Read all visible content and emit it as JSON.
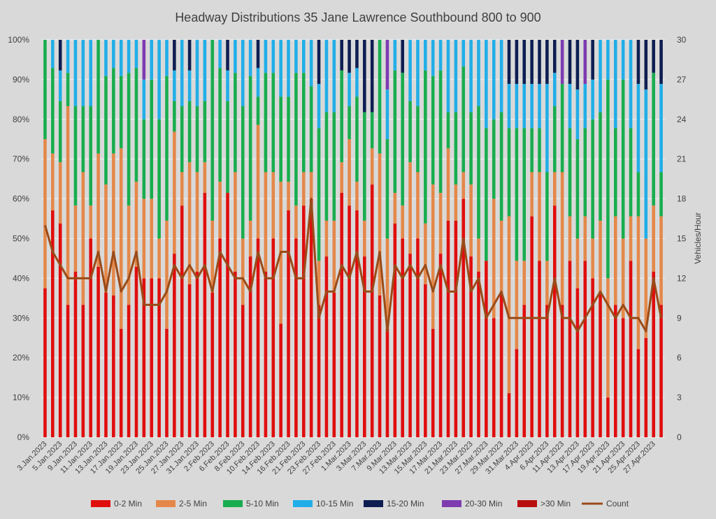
{
  "chart_data": {
    "type": "bar",
    "stacked": true,
    "title": "Headway Distributions 35 Jane  Lawrence Southbound 800 to 900",
    "y_axis": {
      "ticks": [
        "0%",
        "10%",
        "20%",
        "30%",
        "40%",
        "50%",
        "60%",
        "70%",
        "80%",
        "90%",
        "100%"
      ],
      "ylim": [
        0,
        100
      ]
    },
    "y2_axis": {
      "label": "Vehicles/Hour",
      "ticks": [
        "0",
        "3",
        "6",
        "9",
        "12",
        "15",
        "18",
        "21",
        "24",
        "27",
        "30"
      ],
      "ylim": [
        0,
        30
      ]
    },
    "grid": true,
    "legend_position": "bottom",
    "x_tick_labels": [
      "3.Jan.2023",
      "5.Jan.2023",
      "9.Jan.2023",
      "11.Jan.2023",
      "13.Jan.2023",
      "17.Jan.2023",
      "19.Jan.2023",
      "23.Jan.2023",
      "25.Jan.2023",
      "27.Jan.2023",
      "31.Jan.2023",
      "2.Feb.2023",
      "6.Feb.2023",
      "8.Feb.2023",
      "10.Feb.2023",
      "14.Feb.2023",
      "16.Feb.2023",
      "21.Feb.2023",
      "23.Feb.2023",
      "27.Feb.2023",
      "1.Mar.2023",
      "3.Mar.2023",
      "7.Mar.2023",
      "9.Mar.2023",
      "13.Mar.2023",
      "15.Mar.2023",
      "17.Mar.2023",
      "21.Mar.2023",
      "23.Mar.2023",
      "27.Mar.2023",
      "29.Mar.2023",
      "31.Mar.2023",
      "4.Apr.2023",
      "6.Apr.2023",
      "11.Apr.2023",
      "13.Apr.2023",
      "17.Apr.2023",
      "19.Apr.2023",
      "21.Apr.2023",
      "25.Apr.2023",
      "27.Apr.2023"
    ],
    "series_meta": [
      {
        "name": "0-2 Min",
        "color": "#e00d0d"
      },
      {
        "name": "2-5 Min",
        "color": "#e4884a"
      },
      {
        "name": "5-10 Min",
        "color": "#18ad4e"
      },
      {
        "name": "10-15 Min",
        "color": "#21aee8"
      },
      {
        "name": "15-20 Min",
        "color": "#0e1e52"
      },
      {
        "name": "20-30 Min",
        "color": "#7e3bb0"
      },
      {
        "name": ">30 Min",
        "color": "#b80e0e"
      }
    ],
    "line_series": {
      "name": "Count",
      "color": "#9a4b18",
      "axis": "secondary"
    },
    "values": [
      [
        37.5,
        75.0,
        100.0,
        100.0,
        100.0,
        100.0,
        100.0,
        16
      ],
      [
        57.1,
        71.4,
        92.9,
        100.0,
        100.0,
        100.0,
        100.0,
        14
      ],
      [
        53.8,
        69.2,
        84.6,
        92.3,
        100.0,
        100.0,
        100.0,
        13
      ],
      [
        33.3,
        83.3,
        91.7,
        100.0,
        100.0,
        100.0,
        100.0,
        12
      ],
      [
        41.7,
        58.3,
        83.3,
        100.0,
        100.0,
        100.0,
        100.0,
        12
      ],
      [
        33.3,
        66.7,
        83.3,
        100.0,
        100.0,
        100.0,
        100.0,
        12
      ],
      [
        50.0,
        58.3,
        83.3,
        100.0,
        100.0,
        100.0,
        100.0,
        12
      ],
      [
        42.9,
        71.4,
        100.0,
        100.0,
        100.0,
        100.0,
        100.0,
        14
      ],
      [
        36.4,
        63.6,
        90.9,
        100.0,
        100.0,
        100.0,
        100.0,
        11
      ],
      [
        35.7,
        71.4,
        92.9,
        100.0,
        100.0,
        100.0,
        100.0,
        14
      ],
      [
        27.3,
        72.7,
        90.9,
        100.0,
        100.0,
        100.0,
        100.0,
        11
      ],
      [
        33.3,
        58.3,
        91.7,
        100.0,
        100.0,
        100.0,
        100.0,
        12
      ],
      [
        42.9,
        64.3,
        92.9,
        100.0,
        100.0,
        100.0,
        100.0,
        14
      ],
      [
        40.0,
        60.0,
        80.0,
        90.0,
        90.0,
        100.0,
        100.0,
        10
      ],
      [
        40.0,
        60.0,
        90.0,
        100.0,
        100.0,
        100.0,
        100.0,
        10
      ],
      [
        40.0,
        50.0,
        80.0,
        100.0,
        100.0,
        100.0,
        100.0,
        10
      ],
      [
        27.3,
        54.5,
        90.9,
        100.0,
        100.0,
        100.0,
        100.0,
        11
      ],
      [
        46.2,
        76.9,
        84.6,
        92.3,
        100.0,
        100.0,
        100.0,
        13
      ],
      [
        58.3,
        66.7,
        83.3,
        100.0,
        100.0,
        100.0,
        100.0,
        12
      ],
      [
        38.5,
        69.2,
        84.6,
        92.3,
        100.0,
        100.0,
        100.0,
        13
      ],
      [
        41.7,
        66.7,
        83.3,
        100.0,
        100.0,
        100.0,
        100.0,
        12
      ],
      [
        61.5,
        69.2,
        84.6,
        100.0,
        100.0,
        100.0,
        100.0,
        13
      ],
      [
        36.4,
        54.5,
        100.0,
        100.0,
        100.0,
        100.0,
        100.0,
        11
      ],
      [
        50.0,
        64.3,
        92.9,
        100.0,
        100.0,
        100.0,
        100.0,
        14
      ],
      [
        61.5,
        61.5,
        84.6,
        92.3,
        100.0,
        100.0,
        100.0,
        13
      ],
      [
        41.7,
        66.7,
        91.7,
        100.0,
        100.0,
        100.0,
        100.0,
        12
      ],
      [
        33.3,
        50.0,
        83.3,
        100.0,
        100.0,
        100.0,
        100.0,
        12
      ],
      [
        45.5,
        54.5,
        90.9,
        100.0,
        100.0,
        100.0,
        100.0,
        11
      ],
      [
        50.0,
        78.6,
        85.7,
        92.9,
        100.0,
        100.0,
        100.0,
        14
      ],
      [
        41.7,
        66.7,
        91.7,
        100.0,
        100.0,
        100.0,
        100.0,
        12
      ],
      [
        50.0,
        66.7,
        91.7,
        100.0,
        100.0,
        100.0,
        100.0,
        12
      ],
      [
        28.6,
        64.3,
        85.7,
        100.0,
        100.0,
        100.0,
        100.0,
        14
      ],
      [
        57.1,
        64.3,
        85.7,
        100.0,
        100.0,
        100.0,
        100.0,
        14
      ],
      [
        50.0,
        58.3,
        91.7,
        100.0,
        100.0,
        100.0,
        100.0,
        12
      ],
      [
        58.3,
        66.7,
        91.7,
        100.0,
        100.0,
        100.0,
        100.0,
        12
      ],
      [
        60.0,
        66.7,
        88.3,
        100.0,
        100.0,
        100.0,
        100.0,
        18
      ],
      [
        33.3,
        44.4,
        77.8,
        88.9,
        100.0,
        100.0,
        100.0,
        9
      ],
      [
        45.5,
        54.5,
        81.8,
        100.0,
        100.0,
        100.0,
        100.0,
        11
      ],
      [
        36.4,
        54.5,
        81.8,
        100.0,
        100.0,
        100.0,
        100.0,
        11
      ],
      [
        61.5,
        69.2,
        92.3,
        92.3,
        100.0,
        100.0,
        100.0,
        13
      ],
      [
        58.3,
        75.0,
        83.3,
        91.7,
        100.0,
        100.0,
        100.0,
        12
      ],
      [
        57.1,
        64.3,
        85.7,
        92.9,
        100.0,
        100.0,
        100.0,
        14
      ],
      [
        45.5,
        54.5,
        81.8,
        81.8,
        100.0,
        100.0,
        100.0,
        11
      ],
      [
        63.6,
        72.7,
        81.8,
        81.8,
        100.0,
        100.0,
        100.0,
        11
      ],
      [
        35.7,
        71.4,
        100.0,
        100.0,
        100.0,
        100.0,
        100.0,
        14
      ],
      [
        27.3,
        50.0,
        75.0,
        87.5,
        87.5,
        100.0,
        100.0,
        8
      ],
      [
        53.8,
        61.5,
        92.3,
        100.0,
        100.0,
        100.0,
        100.0,
        13
      ],
      [
        50.0,
        58.3,
        91.7,
        91.7,
        100.0,
        100.0,
        100.0,
        12
      ],
      [
        46.2,
        69.2,
        84.6,
        100.0,
        100.0,
        100.0,
        100.0,
        13
      ],
      [
        50.0,
        66.7,
        83.3,
        100.0,
        100.0,
        100.0,
        100.0,
        12
      ],
      [
        38.5,
        53.8,
        92.3,
        100.0,
        100.0,
        100.0,
        100.0,
        13
      ],
      [
        27.3,
        63.6,
        90.9,
        100.0,
        100.0,
        100.0,
        100.0,
        11
      ],
      [
        46.2,
        61.5,
        92.3,
        100.0,
        100.0,
        100.0,
        100.0,
        13
      ],
      [
        54.5,
        72.7,
        81.8,
        100.0,
        100.0,
        100.0,
        100.0,
        11
      ],
      [
        54.5,
        63.6,
        81.8,
        100.0,
        100.0,
        100.0,
        100.0,
        11
      ],
      [
        60.0,
        66.7,
        93.3,
        100.0,
        100.0,
        100.0,
        100.0,
        15
      ],
      [
        45.5,
        63.6,
        81.8,
        100.0,
        100.0,
        100.0,
        100.0,
        11
      ],
      [
        41.7,
        50.0,
        83.3,
        100.0,
        100.0,
        100.0,
        100.0,
        12
      ],
      [
        44.4,
        44.4,
        77.8,
        100.0,
        100.0,
        100.0,
        100.0,
        9
      ],
      [
        30.0,
        60.0,
        80.0,
        100.0,
        100.0,
        100.0,
        100.0,
        10
      ],
      [
        36.4,
        54.5,
        81.8,
        100.0,
        100.0,
        100.0,
        100.0,
        11
      ],
      [
        11.1,
        55.6,
        77.8,
        88.9,
        100.0,
        100.0,
        100.0,
        9
      ],
      [
        22.2,
        44.4,
        77.8,
        88.9,
        100.0,
        100.0,
        100.0,
        9
      ],
      [
        33.3,
        44.4,
        77.8,
        88.9,
        100.0,
        100.0,
        100.0,
        9
      ],
      [
        55.6,
        66.7,
        77.8,
        88.9,
        100.0,
        100.0,
        100.0,
        9
      ],
      [
        44.4,
        66.7,
        77.8,
        88.9,
        100.0,
        100.0,
        100.0,
        9
      ],
      [
        33.3,
        44.4,
        66.7,
        88.9,
        100.0,
        100.0,
        100.0,
        9
      ],
      [
        58.3,
        66.7,
        83.3,
        91.7,
        100.0,
        100.0,
        100.0,
        12
      ],
      [
        33.3,
        66.7,
        88.9,
        88.9,
        88.9,
        100.0,
        100.0,
        9
      ],
      [
        44.4,
        55.6,
        77.8,
        88.9,
        100.0,
        100.0,
        100.0,
        9
      ],
      [
        37.5,
        50.0,
        75.0,
        87.5,
        100.0,
        100.0,
        100.0,
        8
      ],
      [
        44.4,
        55.6,
        77.8,
        88.9,
        88.9,
        100.0,
        100.0,
        9
      ],
      [
        40.0,
        50.0,
        80.0,
        90.0,
        100.0,
        100.0,
        100.0,
        10
      ],
      [
        36.4,
        54.5,
        81.8,
        100.0,
        100.0,
        100.0,
        100.0,
        11
      ],
      [
        10.0,
        40.0,
        90.0,
        100.0,
        100.0,
        100.0,
        100.0,
        10
      ],
      [
        33.3,
        55.6,
        77.8,
        100.0,
        100.0,
        100.0,
        100.0,
        9
      ],
      [
        30.0,
        50.0,
        90.0,
        100.0,
        100.0,
        100.0,
        100.0,
        10
      ],
      [
        44.4,
        55.6,
        77.8,
        100.0,
        100.0,
        100.0,
        100.0,
        9
      ],
      [
        22.2,
        55.6,
        66.7,
        88.9,
        100.0,
        100.0,
        100.0,
        9
      ],
      [
        25.0,
        50.0,
        50.0,
        87.5,
        100.0,
        100.0,
        100.0,
        8
      ],
      [
        41.7,
        58.3,
        91.7,
        91.7,
        100.0,
        100.0,
        100.0,
        12
      ],
      [
        33.3,
        55.6,
        66.7,
        88.9,
        100.0,
        100.0,
        100.0,
        9
      ]
    ]
  }
}
